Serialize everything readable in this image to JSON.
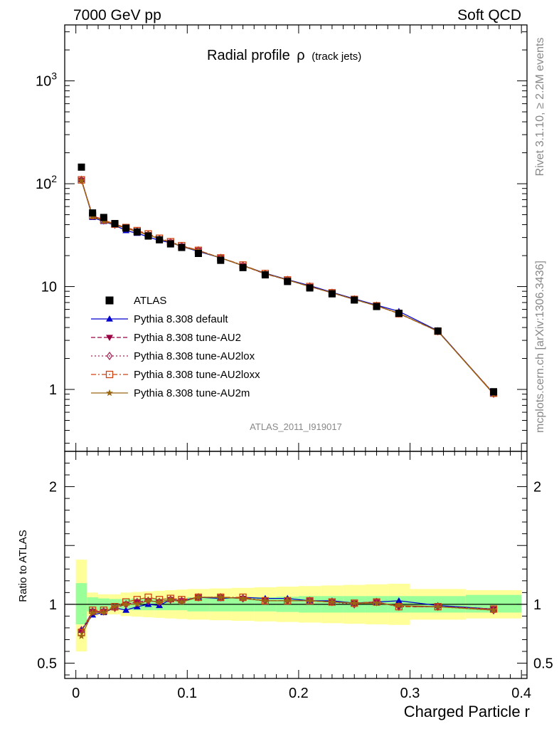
{
  "header": {
    "left_label": "7000 GeV pp",
    "right_label": "Soft QCD"
  },
  "side_labels": {
    "rivet": "Rivet 3.1.10, ≥ 2.2M events",
    "mcplots": "mcplots.cern.ch [arXiv:1306.3436]"
  },
  "watermark": "ATLAS_2011_I919017",
  "chart_data": {
    "type": "line",
    "title": "Radial profile",
    "title_symbol": "ρ",
    "title_suffix": "(track jets)",
    "x": [
      0.005,
      0.015,
      0.025,
      0.035,
      0.045,
      0.055,
      0.065,
      0.075,
      0.085,
      0.095,
      0.11,
      0.13,
      0.15,
      0.17,
      0.19,
      0.21,
      0.23,
      0.25,
      0.27,
      0.29,
      0.325,
      0.375
    ],
    "xlabel": "Charged Particle r",
    "xlim": [
      -0.01,
      0.405
    ],
    "xticks": [
      0,
      0.1,
      0.2,
      0.3,
      0.4
    ],
    "xtick_labels": [
      "0",
      "0.1",
      "0.2",
      "0.3",
      "0.4"
    ],
    "main_panel": {
      "yscale": "log",
      "ylim": [
        0.25,
        3500
      ],
      "yticks": [
        1,
        10,
        100,
        1000
      ],
      "ytick_labels": [
        "1",
        "10",
        "10^2",
        "10^3"
      ],
      "data": {
        "name": "ATLAS",
        "values": [
          145,
          52,
          47,
          41,
          37,
          34,
          31,
          28.5,
          26,
          24,
          21,
          18,
          15.3,
          13,
          11.2,
          9.7,
          8.5,
          7.4,
          6.4,
          5.5,
          3.7,
          0.95
        ]
      },
      "series": [
        {
          "name": "Pythia 8.308 default",
          "color": "#0000cc",
          "marker": "triangle-up",
          "line": "solid",
          "values": [
            110,
            47,
            43,
            39.5,
            35,
            33,
            30.5,
            28,
            26.8,
            24.5,
            22,
            19,
            16,
            13.5,
            11.7,
            10.2,
            8.8,
            7.6,
            6.6,
            5.75,
            3.72,
            0.91
          ]
        },
        {
          "name": "Pythia 8.308 tune-AU2",
          "color": "#990044",
          "marker": "triangle-down",
          "line": "dashed",
          "values": [
            108,
            49,
            44,
            40,
            37,
            34.5,
            32,
            29,
            27,
            24.7,
            22.5,
            19,
            16,
            13.3,
            11.6,
            10,
            8.7,
            7.5,
            6.5,
            5.5,
            3.68,
            0.91
          ]
        },
        {
          "name": "Pythia 8.308 tune-AU2lox",
          "color": "#aa2255",
          "marker": "diamond-open",
          "line": "dotted",
          "values": [
            109,
            49,
            44,
            40,
            37,
            34.5,
            32,
            29,
            27,
            24.7,
            22.5,
            19,
            16,
            13.3,
            11.6,
            10,
            8.7,
            7.5,
            6.5,
            5.5,
            3.68,
            0.91
          ]
        },
        {
          "name": "Pythia 8.308 tune-AU2loxx",
          "color": "#cc4411",
          "marker": "square-open",
          "line": "dashdot",
          "values": [
            109,
            49,
            44.5,
            40.5,
            37.5,
            35,
            32.5,
            29.5,
            27.3,
            25,
            22.5,
            19,
            16.2,
            13.4,
            11.6,
            10,
            8.7,
            7.5,
            6.5,
            5.45,
            3.68,
            0.92
          ]
        },
        {
          "name": "Pythia 8.308 tune-AU2m",
          "color": "#996611",
          "marker": "star",
          "line": "solid",
          "values": [
            107,
            48,
            43.5,
            40,
            37,
            34,
            32,
            29,
            27,
            24.5,
            22.3,
            19,
            16,
            13.4,
            11.6,
            10,
            8.7,
            7.5,
            6.5,
            5.5,
            3.68,
            0.9
          ]
        }
      ],
      "legend_position": "middle-left"
    },
    "ratio_panel": {
      "ylabel": "Ratio to ATLAS",
      "ylim": [
        0.37,
        2.3
      ],
      "yticks": [
        0.5,
        1,
        2
      ],
      "ytick_labels": [
        "0.5",
        "1",
        "2"
      ],
      "band_edges": [
        0,
        0.01,
        0.02,
        0.03,
        0.04,
        0.05,
        0.06,
        0.07,
        0.08,
        0.09,
        0.1,
        0.12,
        0.14,
        0.16,
        0.18,
        0.2,
        0.22,
        0.24,
        0.26,
        0.28,
        0.3,
        0.35,
        0.4
      ],
      "band_inner": [
        [
          0.83,
          1.18
        ],
        [
          0.94,
          1.06
        ],
        [
          0.95,
          1.05
        ],
        [
          0.955,
          1.045
        ],
        [
          0.955,
          1.045
        ],
        [
          0.95,
          1.05
        ],
        [
          0.95,
          1.05
        ],
        [
          0.95,
          1.05
        ],
        [
          0.95,
          1.05
        ],
        [
          0.95,
          1.05
        ],
        [
          0.94,
          1.06
        ],
        [
          0.94,
          1.06
        ],
        [
          0.94,
          1.06
        ],
        [
          0.94,
          1.06
        ],
        [
          0.935,
          1.065
        ],
        [
          0.93,
          1.07
        ],
        [
          0.93,
          1.07
        ],
        [
          0.93,
          1.07
        ],
        [
          0.93,
          1.07
        ],
        [
          0.93,
          1.07
        ],
        [
          0.93,
          1.07
        ],
        [
          0.93,
          1.08
        ]
      ],
      "band_outer": [
        [
          0.6,
          1.38
        ],
        [
          0.9,
          1.1
        ],
        [
          0.915,
          1.085
        ],
        [
          0.915,
          1.085
        ],
        [
          0.9,
          1.1
        ],
        [
          0.895,
          1.105
        ],
        [
          0.89,
          1.11
        ],
        [
          0.885,
          1.115
        ],
        [
          0.88,
          1.12
        ],
        [
          0.875,
          1.125
        ],
        [
          0.87,
          1.13
        ],
        [
          0.865,
          1.135
        ],
        [
          0.86,
          1.14
        ],
        [
          0.855,
          1.145
        ],
        [
          0.85,
          1.15
        ],
        [
          0.845,
          1.155
        ],
        [
          0.84,
          1.16
        ],
        [
          0.835,
          1.165
        ],
        [
          0.83,
          1.17
        ],
        [
          0.825,
          1.175
        ],
        [
          0.87,
          1.13
        ],
        [
          0.88,
          1.12
        ]
      ],
      "series": [
        {
          "name": "Pythia 8.308 default",
          "values": [
            0.78,
            0.91,
            0.93,
            0.97,
            0.95,
            0.98,
            1.0,
            0.99,
            1.04,
            1.03,
            1.06,
            1.05,
            1.06,
            1.05,
            1.05,
            1.03,
            1.03,
            1.01,
            1.02,
            1.03,
            0.99,
            0.96
          ]
        },
        {
          "name": "Pythia 8.308 tune-AU2",
          "values": [
            0.77,
            0.94,
            0.94,
            0.97,
            1.0,
            1.02,
            1.03,
            1.02,
            1.04,
            1.03,
            1.06,
            1.06,
            1.05,
            1.03,
            1.03,
            1.03,
            1.02,
            1.01,
            1.02,
            0.98,
            0.98,
            0.96
          ]
        },
        {
          "name": "Pythia 8.308 tune-AU2lox",
          "values": [
            0.78,
            0.94,
            0.94,
            0.97,
            1.0,
            1.02,
            1.03,
            1.02,
            1.04,
            1.03,
            1.06,
            1.06,
            1.05,
            1.03,
            1.03,
            1.03,
            1.02,
            1.0,
            1.02,
            0.98,
            0.98,
            0.95
          ]
        },
        {
          "name": "Pythia 8.308 tune-AU2loxx",
          "values": [
            0.76,
            0.95,
            0.95,
            0.98,
            1.02,
            1.04,
            1.06,
            1.04,
            1.05,
            1.04,
            1.06,
            1.06,
            1.06,
            1.03,
            1.03,
            1.03,
            1.02,
            1.01,
            1.02,
            0.98,
            0.98,
            0.96
          ]
        },
        {
          "name": "Pythia 8.308 tune-AU2m",
          "values": [
            0.73,
            0.93,
            0.93,
            0.98,
            1.0,
            1.0,
            1.03,
            1.02,
            1.04,
            1.02,
            1.06,
            1.06,
            1.05,
            1.03,
            1.03,
            1.03,
            1.02,
            1.01,
            1.01,
            0.99,
            0.98,
            0.95
          ]
        }
      ]
    }
  }
}
